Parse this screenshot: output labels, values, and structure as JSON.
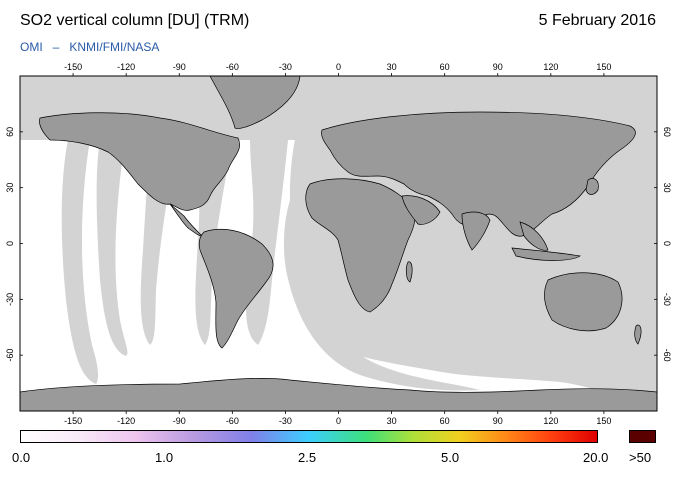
{
  "header": {
    "title": "SO2 vertical column [DU] (TRM)",
    "date": "5 February 2016",
    "credit_left": "OMI",
    "credit_sep": "–",
    "credit_right": "KNMI/FMI/NASA"
  },
  "map": {
    "lon_ticks_top": [
      "-150",
      "-120",
      "-90",
      "-60",
      "-30",
      "0",
      "30",
      "60",
      "90",
      "120",
      "150"
    ],
    "lon_ticks_bottom": [
      "-150",
      "-120",
      "-90",
      "-60",
      "-30",
      "0",
      "30",
      "60",
      "90",
      "120",
      "150"
    ],
    "lat_ticks_left": [
      "60",
      "30",
      "0",
      "-30",
      "-60"
    ],
    "lat_ticks_right": [
      "60",
      "30",
      "0",
      "-30",
      "-60"
    ],
    "colors": {
      "land": "#9a9a9a",
      "ocean_nodata": "#d3d3d3",
      "data_bg": "#ffffff"
    }
  },
  "colorbar": {
    "tick_labels": [
      "0.0",
      "1.0",
      "2.5",
      "5.0",
      "20.0"
    ],
    "overflow_label": ">50",
    "overflow_color": "#5a0000"
  }
}
